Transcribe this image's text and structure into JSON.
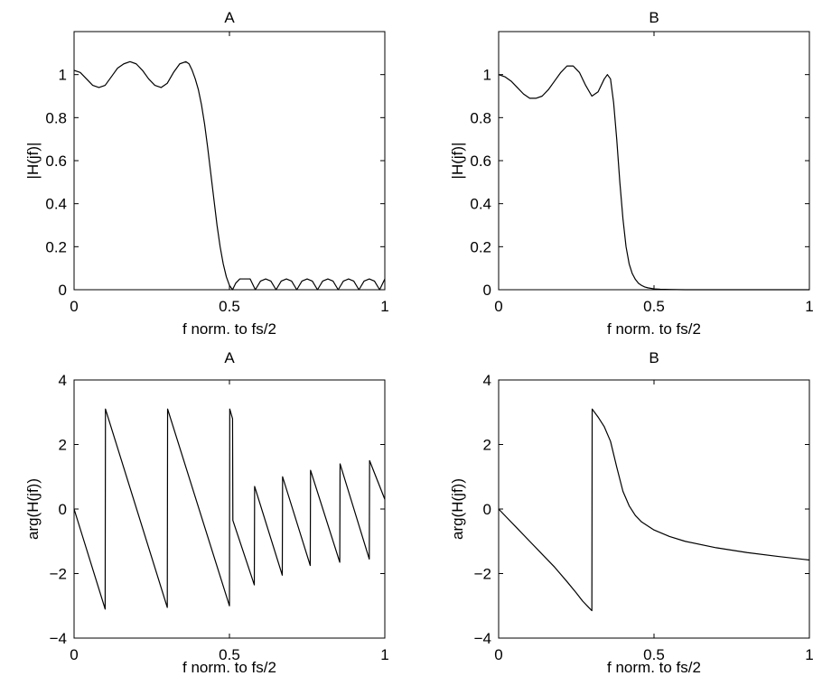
{
  "chart_data": [
    {
      "type": "line",
      "title": "A",
      "xlabel": "f norm. to fs/2",
      "ylabel": "|H(jf)|",
      "xlim": [
        0,
        1
      ],
      "ylim": [
        0,
        1.2
      ],
      "xticks": [
        0,
        0.5,
        1
      ],
      "xtick_labels": [
        "0",
        "0.5",
        "1"
      ],
      "yticks": [
        0,
        0.2,
        0.4,
        0.6,
        0.8,
        1
      ],
      "ytick_labels": [
        "0",
        "0.2",
        "0.4",
        "0.6",
        "0.8",
        "1"
      ],
      "grid": false,
      "series": [
        {
          "x": [
            0,
            0.02,
            0.04,
            0.06,
            0.08,
            0.1,
            0.12,
            0.14,
            0.16,
            0.18,
            0.2,
            0.22,
            0.24,
            0.26,
            0.28,
            0.3,
            0.32,
            0.34,
            0.36,
            0.37,
            0.38,
            0.39,
            0.4,
            0.41,
            0.42,
            0.43,
            0.44,
            0.45,
            0.46,
            0.47,
            0.48,
            0.49,
            0.5,
            0.51,
            0.52,
            0.5333,
            0.5667,
            0.5833,
            0.6,
            0.6167,
            0.6333,
            0.65,
            0.6667,
            0.6833,
            0.7,
            0.7167,
            0.7333,
            0.75,
            0.7667,
            0.7833,
            0.8,
            0.8167,
            0.8333,
            0.85,
            0.8667,
            0.8833,
            0.9,
            0.9167,
            0.9333,
            0.95,
            0.9667,
            0.9833,
            1.0
          ],
          "y": [
            1.02,
            1.01,
            0.98,
            0.95,
            0.94,
            0.95,
            0.99,
            1.03,
            1.05,
            1.06,
            1.05,
            1.02,
            0.98,
            0.95,
            0.94,
            0.96,
            1.01,
            1.05,
            1.06,
            1.05,
            1.02,
            0.98,
            0.93,
            0.86,
            0.77,
            0.66,
            0.54,
            0.42,
            0.3,
            0.2,
            0.12,
            0.06,
            0.02,
            0.0,
            0.03,
            0.05,
            0.05,
            0.0,
            0.04,
            0.05,
            0.04,
            0.0,
            0.04,
            0.05,
            0.04,
            0.0,
            0.04,
            0.05,
            0.04,
            0.0,
            0.04,
            0.05,
            0.04,
            0.0,
            0.04,
            0.05,
            0.04,
            0.0,
            0.04,
            0.05,
            0.04,
            0.0,
            0.05
          ]
        }
      ]
    },
    {
      "type": "line",
      "title": "B",
      "xlabel": "f norm. to fs/2",
      "ylabel": "|H(jf)|",
      "xlim": [
        0,
        1
      ],
      "ylim": [
        0,
        1.2
      ],
      "xticks": [
        0,
        0.5,
        1
      ],
      "xtick_labels": [
        "0",
        "0.5",
        "1"
      ],
      "yticks": [
        0,
        0.2,
        0.4,
        0.6,
        0.8,
        1
      ],
      "ytick_labels": [
        "0",
        "0.2",
        "0.4",
        "0.6",
        "0.8",
        "1"
      ],
      "grid": false,
      "series": [
        {
          "x": [
            0,
            0.02,
            0.04,
            0.06,
            0.08,
            0.1,
            0.12,
            0.14,
            0.16,
            0.18,
            0.2,
            0.22,
            0.24,
            0.26,
            0.28,
            0.3,
            0.32,
            0.34,
            0.35,
            0.36,
            0.37,
            0.38,
            0.39,
            0.4,
            0.41,
            0.42,
            0.43,
            0.44,
            0.45,
            0.46,
            0.47,
            0.48,
            0.5,
            0.52,
            0.55,
            0.6,
            0.65,
            0.7,
            0.8,
            0.9,
            1.0
          ],
          "y": [
            1.0,
            0.99,
            0.97,
            0.94,
            0.91,
            0.89,
            0.89,
            0.9,
            0.93,
            0.97,
            1.01,
            1.04,
            1.04,
            1.01,
            0.95,
            0.9,
            0.92,
            0.98,
            1.0,
            0.98,
            0.87,
            0.7,
            0.5,
            0.33,
            0.2,
            0.12,
            0.075,
            0.048,
            0.03,
            0.02,
            0.013,
            0.009,
            0.004,
            0.002,
            0.001,
            0.0,
            0.0,
            0.0,
            0.0,
            0.0,
            0.0
          ]
        }
      ]
    },
    {
      "type": "line",
      "title": "A",
      "xlabel": "f norm. to fs/2",
      "ylabel": "arg(H(jf))",
      "xlim": [
        0,
        1
      ],
      "ylim": [
        -4,
        4
      ],
      "xticks": [
        0,
        0.5,
        1
      ],
      "xtick_labels": [
        "0",
        "0.5",
        "1"
      ],
      "yticks": [
        -4,
        -2,
        0,
        2,
        4
      ],
      "ytick_labels": [
        "−4",
        "−2",
        "0",
        "2",
        "4"
      ],
      "grid": false,
      "series": [
        {
          "x": [
            0,
            0.1,
            0.101,
            0.3,
            0.301,
            0.5,
            0.501,
            0.51,
            0.511,
            0.58,
            0.581,
            0.67,
            0.671,
            0.76,
            0.761,
            0.855,
            0.856,
            0.95,
            0.951,
            1.0
          ],
          "y": [
            0,
            -3.1,
            3.1,
            -3.05,
            3.1,
            -3.0,
            3.1,
            2.8,
            -0.35,
            -2.35,
            0.7,
            -2.05,
            1.0,
            -1.75,
            1.2,
            -1.65,
            1.4,
            -1.55,
            1.5,
            0.3
          ]
        }
      ]
    },
    {
      "type": "line",
      "title": "B",
      "xlabel": "f norm. to fs/2",
      "ylabel": "arg(H(jf))",
      "xlim": [
        0,
        1
      ],
      "ylim": [
        -4,
        4
      ],
      "xticks": [
        0,
        0.5,
        1
      ],
      "xtick_labels": [
        "0",
        "0.5",
        "1"
      ],
      "yticks": [
        -4,
        -2,
        0,
        2,
        4
      ],
      "ytick_labels": [
        "−4",
        "−2",
        "0",
        "2",
        "4"
      ],
      "grid": false,
      "series": [
        {
          "x": [
            0,
            0.03,
            0.06,
            0.1,
            0.14,
            0.18,
            0.22,
            0.25,
            0.27,
            0.29,
            0.3,
            0.301,
            0.32,
            0.34,
            0.36,
            0.38,
            0.4,
            0.42,
            0.44,
            0.46,
            0.5,
            0.55,
            0.6,
            0.7,
            0.8,
            0.9,
            1.0
          ],
          "y": [
            0,
            -0.3,
            -0.6,
            -1.0,
            -1.4,
            -1.8,
            -2.25,
            -2.6,
            -2.85,
            -3.05,
            -3.15,
            3.1,
            2.85,
            2.55,
            2.1,
            1.3,
            0.55,
            0.1,
            -0.2,
            -0.4,
            -0.65,
            -0.85,
            -1.0,
            -1.2,
            -1.35,
            -1.47,
            -1.58
          ]
        }
      ]
    }
  ]
}
